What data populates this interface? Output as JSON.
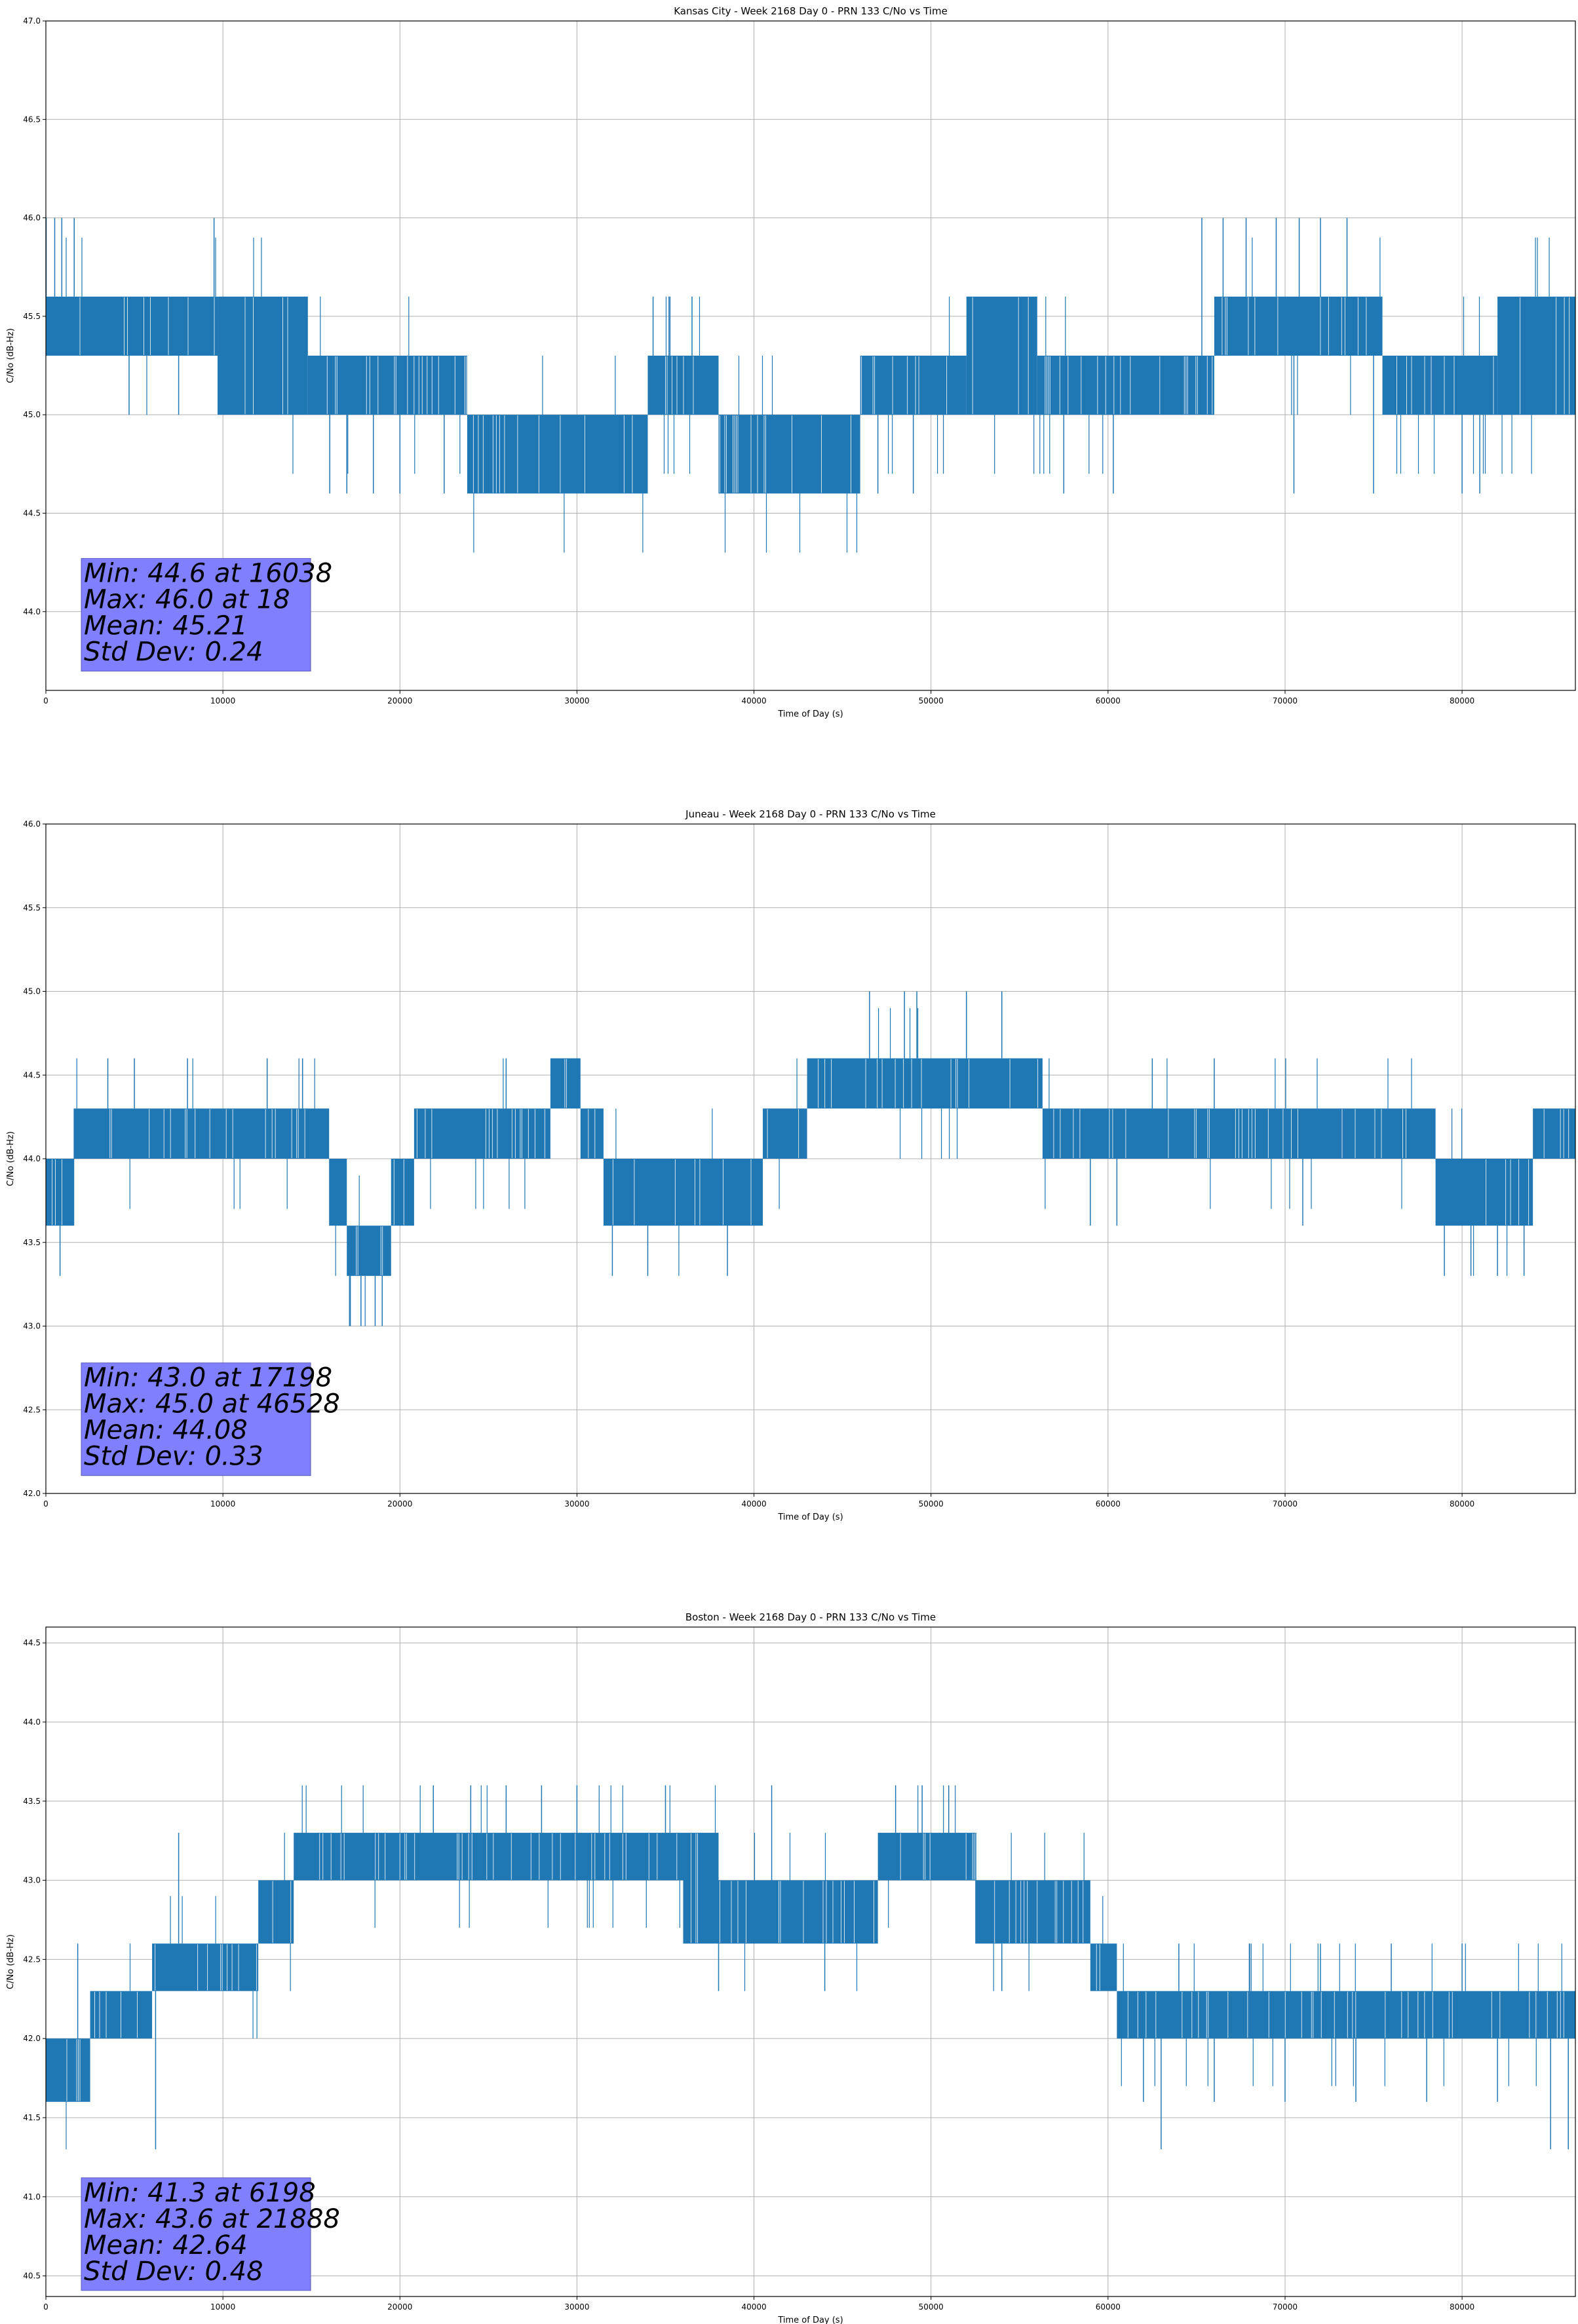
{
  "chart_data": [
    {
      "type": "line",
      "title": "Kansas City - Week 2168 Day 0 - PRN 133 C/No vs Time",
      "xlabel": "Time of Day (s)",
      "ylabel": "C/No (dB-Hz)",
      "xlim": [
        0,
        86400
      ],
      "ylim": [
        43.6,
        47.0
      ],
      "xticks": [
        0,
        10000,
        20000,
        30000,
        40000,
        50000,
        60000,
        70000,
        80000
      ],
      "yticks": [
        44.0,
        44.5,
        45.0,
        45.5,
        46.0,
        46.5,
        47.0
      ],
      "grid": true,
      "series_color": "#1f77b4",
      "stats": [
        "Min: 44.6 at 16038",
        "Max: 46.0 at 18",
        "Mean: 45.21",
        "Std Dev: 0.24"
      ],
      "bands": [
        {
          "x": [
            0,
            9700
          ],
          "lo": 45.3,
          "hi": 45.6
        },
        {
          "x": [
            9700,
            14800
          ],
          "lo": 45.0,
          "hi": 45.6
        },
        {
          "x": [
            14800,
            23800
          ],
          "lo": 45.0,
          "hi": 45.3
        },
        {
          "x": [
            23800,
            34000
          ],
          "lo": 44.6,
          "hi": 45.0
        },
        {
          "x": [
            34000,
            38000
          ],
          "lo": 45.0,
          "hi": 45.3
        },
        {
          "x": [
            38000,
            46000
          ],
          "lo": 44.6,
          "hi": 45.0
        },
        {
          "x": [
            46000,
            52000
          ],
          "lo": 45.0,
          "hi": 45.3
        },
        {
          "x": [
            52000,
            56000
          ],
          "lo": 45.0,
          "hi": 45.6
        },
        {
          "x": [
            56000,
            66000
          ],
          "lo": 45.0,
          "hi": 45.3
        },
        {
          "x": [
            66000,
            75500
          ],
          "lo": 45.3,
          "hi": 45.6
        },
        {
          "x": [
            75500,
            82000
          ],
          "lo": 45.0,
          "hi": 45.3
        },
        {
          "x": [
            82000,
            86400
          ],
          "lo": 45.0,
          "hi": 45.6
        }
      ],
      "spikes": [
        {
          "x": 18,
          "v": 46.0
        },
        {
          "x": 500,
          "v": 46.0
        },
        {
          "x": 900,
          "v": 46.0
        },
        {
          "x": 1600,
          "v": 46.0
        },
        {
          "x": 9500,
          "v": 46.0
        },
        {
          "x": 16038,
          "v": 44.6
        },
        {
          "x": 17000,
          "v": 44.6
        },
        {
          "x": 18500,
          "v": 44.6
        },
        {
          "x": 20000,
          "v": 44.6
        },
        {
          "x": 22500,
          "v": 44.6
        },
        {
          "x": 34300,
          "v": 45.6
        },
        {
          "x": 35200,
          "v": 45.6
        },
        {
          "x": 36500,
          "v": 45.6
        },
        {
          "x": 47000,
          "v": 44.6
        },
        {
          "x": 49000,
          "v": 44.6
        },
        {
          "x": 57500,
          "v": 44.6
        },
        {
          "x": 60300,
          "v": 44.6
        },
        {
          "x": 65300,
          "v": 46.0
        },
        {
          "x": 66500,
          "v": 46.0
        },
        {
          "x": 67800,
          "v": 46.0
        },
        {
          "x": 69500,
          "v": 46.0
        },
        {
          "x": 70800,
          "v": 46.0
        },
        {
          "x": 72000,
          "v": 46.0
        },
        {
          "x": 73500,
          "v": 46.0
        },
        {
          "x": 70500,
          "v": 44.6
        },
        {
          "x": 75000,
          "v": 44.6
        },
        {
          "x": 80000,
          "v": 44.6
        },
        {
          "x": 81000,
          "v": 44.6
        },
        {
          "x": 4700,
          "v": 45.0
        },
        {
          "x": 7500,
          "v": 45.0
        }
      ],
      "stat_anchor": [
        2000,
        44.27
      ]
    },
    {
      "type": "line",
      "title": "Juneau - Week 2168 Day 0 - PRN 133 C/No vs Time",
      "xlabel": "Time of Day (s)",
      "ylabel": "C/No (dB-Hz)",
      "xlim": [
        0,
        86400
      ],
      "ylim": [
        42.0,
        46.0
      ],
      "xticks": [
        0,
        10000,
        20000,
        30000,
        40000,
        50000,
        60000,
        70000,
        80000
      ],
      "yticks": [
        42.0,
        42.5,
        43.0,
        43.5,
        44.0,
        44.5,
        45.0,
        45.5,
        46.0
      ],
      "grid": true,
      "series_color": "#1f77b4",
      "stats": [
        "Min: 43.0 at 17198",
        "Max: 45.0 at 46528",
        "Mean: 44.08",
        "Std Dev: 0.33"
      ],
      "bands": [
        {
          "x": [
            0,
            1600
          ],
          "lo": 43.6,
          "hi": 44.0
        },
        {
          "x": [
            1600,
            16000
          ],
          "lo": 44.0,
          "hi": 44.3
        },
        {
          "x": [
            16000,
            17000
          ],
          "lo": 43.6,
          "hi": 44.0
        },
        {
          "x": [
            17000,
            19500
          ],
          "lo": 43.3,
          "hi": 43.6
        },
        {
          "x": [
            19500,
            20800
          ],
          "lo": 43.6,
          "hi": 44.0
        },
        {
          "x": [
            20800,
            28500
          ],
          "lo": 44.0,
          "hi": 44.3
        },
        {
          "x": [
            28500,
            30200
          ],
          "lo": 44.3,
          "hi": 44.6
        },
        {
          "x": [
            30200,
            31500
          ],
          "lo": 44.0,
          "hi": 44.3
        },
        {
          "x": [
            31500,
            38000
          ],
          "lo": 43.6,
          "hi": 44.0
        },
        {
          "x": [
            38000,
            40500
          ],
          "lo": 43.6,
          "hi": 44.0
        },
        {
          "x": [
            40500,
            43000
          ],
          "lo": 44.0,
          "hi": 44.3
        },
        {
          "x": [
            43000,
            56300
          ],
          "lo": 44.3,
          "hi": 44.6
        },
        {
          "x": [
            56300,
            70000
          ],
          "lo": 44.0,
          "hi": 44.3
        },
        {
          "x": [
            70000,
            78500
          ],
          "lo": 44.0,
          "hi": 44.3
        },
        {
          "x": [
            78500,
            84000
          ],
          "lo": 43.6,
          "hi": 44.0
        },
        {
          "x": [
            84000,
            86400
          ],
          "lo": 44.0,
          "hi": 44.3
        }
      ],
      "spikes": [
        {
          "x": 800,
          "v": 43.3
        },
        {
          "x": 17198,
          "v": 43.0
        },
        {
          "x": 17800,
          "v": 43.0
        },
        {
          "x": 18600,
          "v": 43.0
        },
        {
          "x": 19000,
          "v": 43.0
        },
        {
          "x": 3500,
          "v": 44.6
        },
        {
          "x": 5000,
          "v": 44.6
        },
        {
          "x": 8000,
          "v": 44.6
        },
        {
          "x": 12500,
          "v": 44.6
        },
        {
          "x": 14500,
          "v": 44.6
        },
        {
          "x": 26000,
          "v": 44.6
        },
        {
          "x": 32000,
          "v": 43.3
        },
        {
          "x": 34000,
          "v": 43.3
        },
        {
          "x": 38500,
          "v": 43.3
        },
        {
          "x": 46528,
          "v": 45.0
        },
        {
          "x": 48500,
          "v": 45.0
        },
        {
          "x": 49200,
          "v": 45.0
        },
        {
          "x": 52000,
          "v": 45.0
        },
        {
          "x": 54000,
          "v": 45.0
        },
        {
          "x": 62500,
          "v": 44.6
        },
        {
          "x": 66000,
          "v": 44.6
        },
        {
          "x": 71000,
          "v": 43.6
        },
        {
          "x": 79000,
          "v": 43.3
        },
        {
          "x": 80500,
          "v": 43.3
        },
        {
          "x": 82000,
          "v": 43.3
        },
        {
          "x": 83500,
          "v": 43.3
        },
        {
          "x": 59000,
          "v": 43.6
        },
        {
          "x": 60500,
          "v": 43.6
        }
      ],
      "stat_anchor": [
        2000,
        42.78
      ]
    },
    {
      "type": "line",
      "title": "Boston - Week 2168 Day 0 - PRN 133 C/No vs Time",
      "xlabel": "Time of Day (s)",
      "ylabel": "C/No (dB-Hz)",
      "xlim": [
        0,
        86400
      ],
      "ylim": [
        40.37,
        44.6
      ],
      "xticks": [
        0,
        10000,
        20000,
        30000,
        40000,
        50000,
        60000,
        70000,
        80000
      ],
      "yticks": [
        40.5,
        41.0,
        41.5,
        42.0,
        42.5,
        43.0,
        43.5,
        44.0,
        44.5
      ],
      "grid": true,
      "series_color": "#1f77b4",
      "stats": [
        "Min: 41.3 at 6198",
        "Max: 43.6 at 21888",
        "Mean: 42.64",
        "Std Dev: 0.48"
      ],
      "bands": [
        {
          "x": [
            0,
            2500
          ],
          "lo": 41.6,
          "hi": 42.0
        },
        {
          "x": [
            2500,
            6000
          ],
          "lo": 42.0,
          "hi": 42.3
        },
        {
          "x": [
            6000,
            12000
          ],
          "lo": 42.3,
          "hi": 42.6
        },
        {
          "x": [
            12000,
            14000
          ],
          "lo": 42.6,
          "hi": 43.0
        },
        {
          "x": [
            14000,
            24000
          ],
          "lo": 43.0,
          "hi": 43.3
        },
        {
          "x": [
            24000,
            36000
          ],
          "lo": 43.0,
          "hi": 43.3
        },
        {
          "x": [
            36000,
            38000
          ],
          "lo": 42.6,
          "hi": 43.3
        },
        {
          "x": [
            38000,
            47000
          ],
          "lo": 42.6,
          "hi": 43.0
        },
        {
          "x": [
            47000,
            52500
          ],
          "lo": 43.0,
          "hi": 43.3
        },
        {
          "x": [
            52500,
            59000
          ],
          "lo": 42.6,
          "hi": 43.0
        },
        {
          "x": [
            59000,
            60500
          ],
          "lo": 42.3,
          "hi": 42.6
        },
        {
          "x": [
            60500,
            86400
          ],
          "lo": 42.0,
          "hi": 42.3
        }
      ],
      "spikes": [
        {
          "x": 6198,
          "v": 41.3
        },
        {
          "x": 1800,
          "v": 42.6
        },
        {
          "x": 7500,
          "v": 43.3
        },
        {
          "x": 21888,
          "v": 43.6
        },
        {
          "x": 24000,
          "v": 43.6
        },
        {
          "x": 26000,
          "v": 43.6
        },
        {
          "x": 28000,
          "v": 43.6
        },
        {
          "x": 30000,
          "v": 43.6
        },
        {
          "x": 35000,
          "v": 43.6
        },
        {
          "x": 41000,
          "v": 43.6
        },
        {
          "x": 48000,
          "v": 43.6
        },
        {
          "x": 49500,
          "v": 43.6
        },
        {
          "x": 51000,
          "v": 43.6
        },
        {
          "x": 63000,
          "v": 41.3
        },
        {
          "x": 85000,
          "v": 41.3
        },
        {
          "x": 86000,
          "v": 41.3
        },
        {
          "x": 62000,
          "v": 41.6
        },
        {
          "x": 66000,
          "v": 41.6
        },
        {
          "x": 70000,
          "v": 41.6
        },
        {
          "x": 74000,
          "v": 41.6
        },
        {
          "x": 78000,
          "v": 41.6
        },
        {
          "x": 82000,
          "v": 41.6
        },
        {
          "x": 64000,
          "v": 42.6
        },
        {
          "x": 68000,
          "v": 42.6
        },
        {
          "x": 72000,
          "v": 42.6
        },
        {
          "x": 76000,
          "v": 42.6
        },
        {
          "x": 80000,
          "v": 42.6
        },
        {
          "x": 38000,
          "v": 42.3
        },
        {
          "x": 44000,
          "v": 42.3
        },
        {
          "x": 54000,
          "v": 42.3
        }
      ],
      "stat_anchor": [
        2000,
        41.12
      ]
    }
  ]
}
